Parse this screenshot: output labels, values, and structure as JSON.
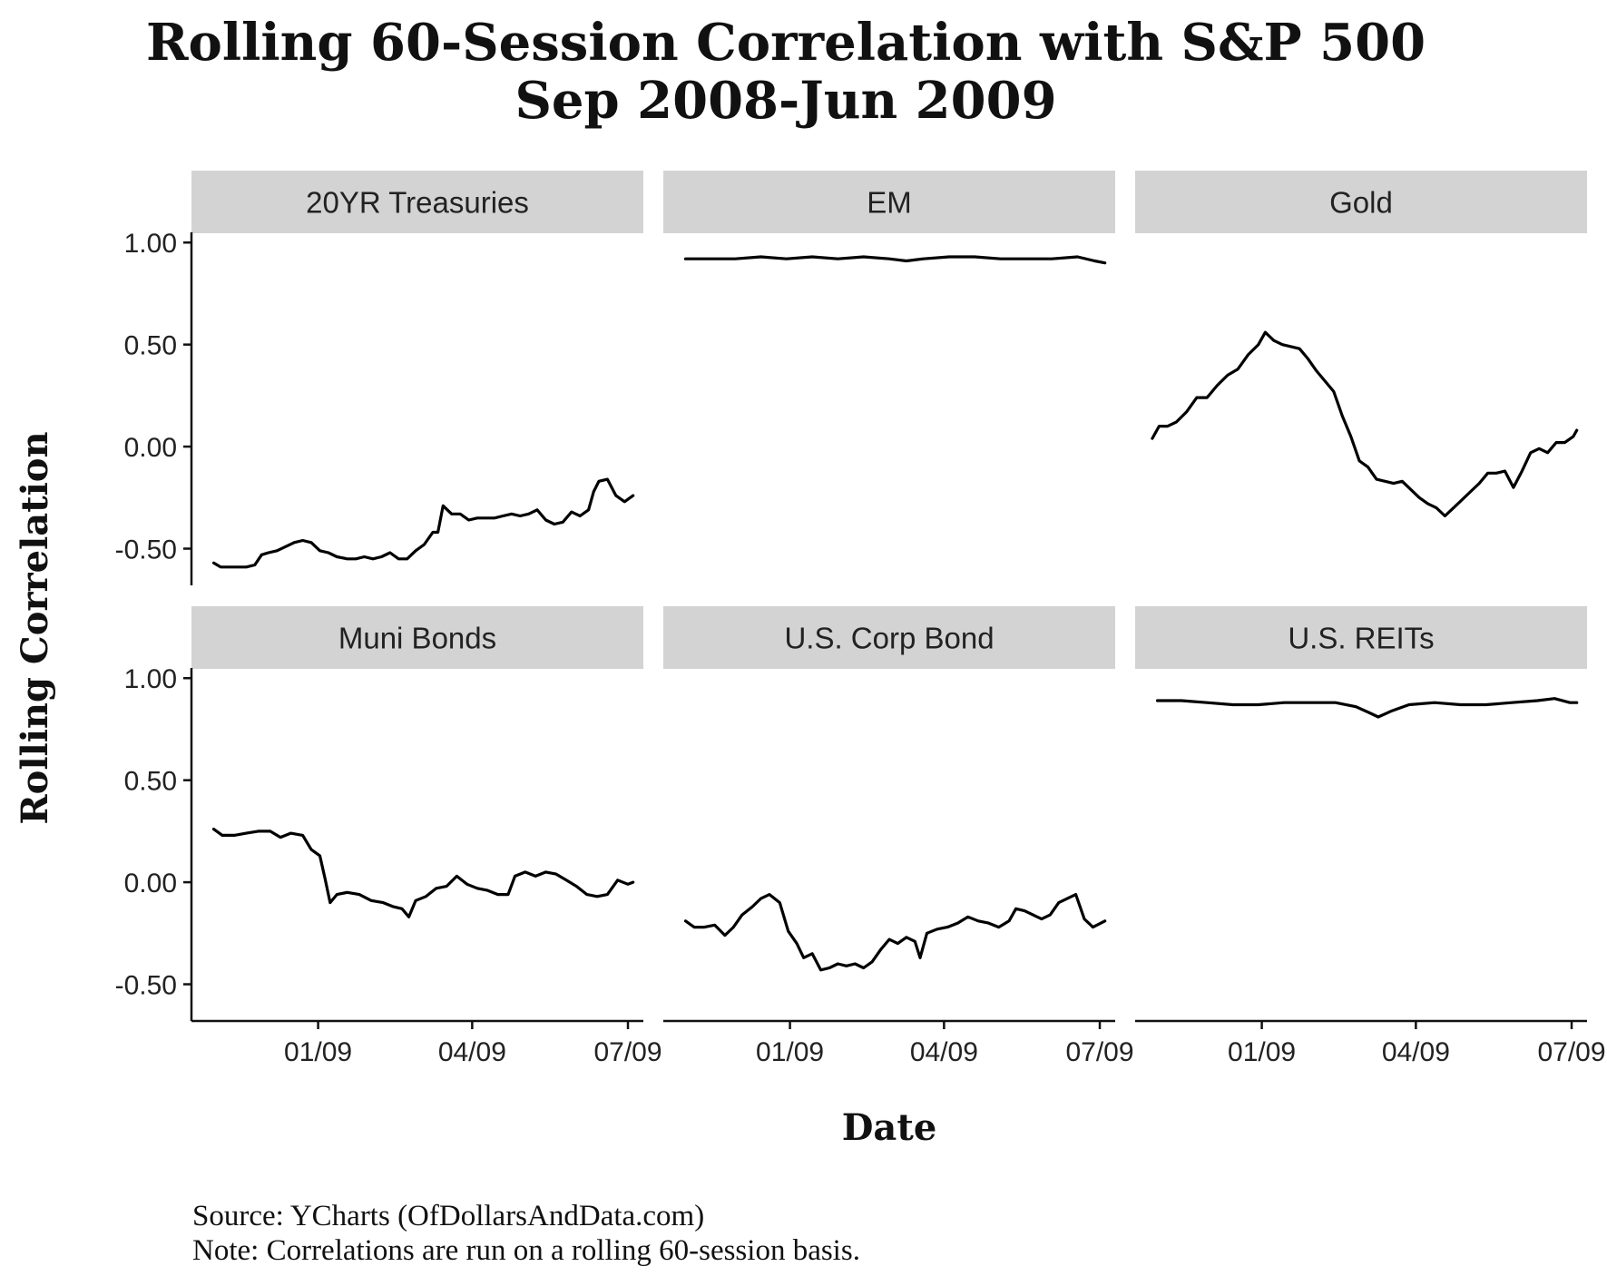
{
  "title_line1": "Rolling 60-Session Correlation with S&P 500",
  "title_line2": "Sep 2008-Jun 2009",
  "caption_source": "Source:  YCharts (OfDollarsAndData.com)",
  "caption_note": "Note: Correlations are run on a rolling 60-session basis.",
  "chart_data": {
    "type": "line",
    "title": "Rolling 60-Session Correlation with S&P 500 Sep 2008-Jun 2009",
    "xlabel": "Date",
    "ylabel": "Rolling Correlation",
    "x_range": [
      "2008-10-19",
      "2009-07-10"
    ],
    "ylim": [
      -0.68,
      1.05
    ],
    "y_ticks": [
      1.0,
      0.5,
      0.0,
      -0.5
    ],
    "y_tick_labels": [
      "1.00",
      "0.50",
      "0.00",
      "-0.50"
    ],
    "x_ticks": [
      "2009-01-01",
      "2009-04-01",
      "2009-07-01"
    ],
    "x_tick_labels": [
      "01/09",
      "04/09",
      "07/09"
    ],
    "grid": false,
    "layout": "facets 2 rows x 3 columns",
    "series": [
      {
        "name": "20YR Treasuries",
        "points": [
          [
            "2008-11-01",
            -0.57
          ],
          [
            "2008-11-05",
            -0.59
          ],
          [
            "2008-11-10",
            -0.59
          ],
          [
            "2008-11-15",
            -0.59
          ],
          [
            "2008-11-20",
            -0.59
          ],
          [
            "2008-11-25",
            -0.58
          ],
          [
            "2008-11-29",
            -0.53
          ],
          [
            "2008-12-03",
            -0.52
          ],
          [
            "2008-12-08",
            -0.51
          ],
          [
            "2008-12-13",
            -0.49
          ],
          [
            "2008-12-18",
            -0.47
          ],
          [
            "2008-12-23",
            -0.46
          ],
          [
            "2008-12-28",
            -0.47
          ],
          [
            "2009-01-02",
            -0.51
          ],
          [
            "2009-01-07",
            -0.52
          ],
          [
            "2009-01-12",
            -0.54
          ],
          [
            "2009-01-18",
            -0.55
          ],
          [
            "2009-01-23",
            -0.55
          ],
          [
            "2009-01-28",
            -0.54
          ],
          [
            "2009-02-02",
            -0.55
          ],
          [
            "2009-02-07",
            -0.54
          ],
          [
            "2009-02-12",
            -0.52
          ],
          [
            "2009-02-17",
            -0.55
          ],
          [
            "2009-02-22",
            -0.55
          ],
          [
            "2009-02-27",
            -0.51
          ],
          [
            "2009-03-04",
            -0.48
          ],
          [
            "2009-03-09",
            -0.42
          ],
          [
            "2009-03-12",
            -0.42
          ],
          [
            "2009-03-15",
            -0.29
          ],
          [
            "2009-03-20",
            -0.33
          ],
          [
            "2009-03-25",
            -0.33
          ],
          [
            "2009-03-30",
            -0.36
          ],
          [
            "2009-04-04",
            -0.35
          ],
          [
            "2009-04-09",
            -0.35
          ],
          [
            "2009-04-14",
            -0.35
          ],
          [
            "2009-04-19",
            -0.34
          ],
          [
            "2009-04-24",
            -0.33
          ],
          [
            "2009-04-29",
            -0.34
          ],
          [
            "2009-05-04",
            -0.33
          ],
          [
            "2009-05-09",
            -0.31
          ],
          [
            "2009-05-14",
            -0.36
          ],
          [
            "2009-05-19",
            -0.38
          ],
          [
            "2009-05-24",
            -0.37
          ],
          [
            "2009-05-29",
            -0.32
          ],
          [
            "2009-06-03",
            -0.34
          ],
          [
            "2009-06-08",
            -0.31
          ],
          [
            "2009-06-11",
            -0.22
          ],
          [
            "2009-06-14",
            -0.17
          ],
          [
            "2009-06-19",
            -0.16
          ],
          [
            "2009-06-24",
            -0.24
          ],
          [
            "2009-06-29",
            -0.27
          ],
          [
            "2009-07-04",
            -0.24
          ]
        ]
      },
      {
        "name": "EM",
        "points": [
          [
            "2008-11-01",
            0.92
          ],
          [
            "2008-11-15",
            0.92
          ],
          [
            "2008-11-30",
            0.92
          ],
          [
            "2008-12-15",
            0.93
          ],
          [
            "2008-12-30",
            0.92
          ],
          [
            "2009-01-14",
            0.93
          ],
          [
            "2009-01-29",
            0.92
          ],
          [
            "2009-02-13",
            0.93
          ],
          [
            "2009-02-28",
            0.92
          ],
          [
            "2009-03-10",
            0.91
          ],
          [
            "2009-03-20",
            0.92
          ],
          [
            "2009-04-04",
            0.93
          ],
          [
            "2009-04-19",
            0.93
          ],
          [
            "2009-05-04",
            0.92
          ],
          [
            "2009-05-19",
            0.92
          ],
          [
            "2009-06-03",
            0.92
          ],
          [
            "2009-06-18",
            0.93
          ],
          [
            "2009-06-28",
            0.91
          ],
          [
            "2009-07-04",
            0.9
          ]
        ]
      },
      {
        "name": "Gold",
        "points": [
          [
            "2008-10-29",
            0.04
          ],
          [
            "2008-11-02",
            0.1
          ],
          [
            "2008-11-07",
            0.1
          ],
          [
            "2008-11-12",
            0.12
          ],
          [
            "2008-11-18",
            0.17
          ],
          [
            "2008-11-24",
            0.24
          ],
          [
            "2008-11-30",
            0.24
          ],
          [
            "2008-12-06",
            0.3
          ],
          [
            "2008-12-12",
            0.35
          ],
          [
            "2008-12-18",
            0.38
          ],
          [
            "2008-12-24",
            0.45
          ],
          [
            "2008-12-30",
            0.5
          ],
          [
            "2009-01-03",
            0.56
          ],
          [
            "2009-01-08",
            0.52
          ],
          [
            "2009-01-13",
            0.5
          ],
          [
            "2009-01-18",
            0.49
          ],
          [
            "2009-01-23",
            0.48
          ],
          [
            "2009-01-28",
            0.43
          ],
          [
            "2009-02-02",
            0.37
          ],
          [
            "2009-02-07",
            0.32
          ],
          [
            "2009-02-12",
            0.27
          ],
          [
            "2009-02-17",
            0.15
          ],
          [
            "2009-02-22",
            0.05
          ],
          [
            "2009-02-27",
            -0.07
          ],
          [
            "2009-03-04",
            -0.1
          ],
          [
            "2009-03-09",
            -0.16
          ],
          [
            "2009-03-14",
            -0.17
          ],
          [
            "2009-03-19",
            -0.18
          ],
          [
            "2009-03-24",
            -0.17
          ],
          [
            "2009-03-29",
            -0.21
          ],
          [
            "2009-04-03",
            -0.25
          ],
          [
            "2009-04-08",
            -0.28
          ],
          [
            "2009-04-13",
            -0.3
          ],
          [
            "2009-04-18",
            -0.34
          ],
          [
            "2009-04-23",
            -0.3
          ],
          [
            "2009-04-28",
            -0.26
          ],
          [
            "2009-05-03",
            -0.22
          ],
          [
            "2009-05-08",
            -0.18
          ],
          [
            "2009-05-13",
            -0.13
          ],
          [
            "2009-05-18",
            -0.13
          ],
          [
            "2009-05-23",
            -0.12
          ],
          [
            "2009-05-28",
            -0.2
          ],
          [
            "2009-06-02",
            -0.12
          ],
          [
            "2009-06-07",
            -0.03
          ],
          [
            "2009-06-12",
            -0.01
          ],
          [
            "2009-06-17",
            -0.03
          ],
          [
            "2009-06-22",
            0.02
          ],
          [
            "2009-06-27",
            0.02
          ],
          [
            "2009-07-02",
            0.05
          ],
          [
            "2009-07-04",
            0.08
          ]
        ]
      },
      {
        "name": "Muni Bonds",
        "points": [
          [
            "2008-11-01",
            0.26
          ],
          [
            "2008-11-06",
            0.23
          ],
          [
            "2008-11-13",
            0.23
          ],
          [
            "2008-11-20",
            0.24
          ],
          [
            "2008-11-27",
            0.25
          ],
          [
            "2008-12-04",
            0.25
          ],
          [
            "2008-12-10",
            0.22
          ],
          [
            "2008-12-16",
            0.24
          ],
          [
            "2008-12-23",
            0.23
          ],
          [
            "2008-12-28",
            0.16
          ],
          [
            "2009-01-02",
            0.13
          ],
          [
            "2009-01-05",
            0.02
          ],
          [
            "2009-01-08",
            -0.1
          ],
          [
            "2009-01-12",
            -0.06
          ],
          [
            "2009-01-18",
            -0.05
          ],
          [
            "2009-01-25",
            -0.06
          ],
          [
            "2009-02-01",
            -0.09
          ],
          [
            "2009-02-08",
            -0.1
          ],
          [
            "2009-02-14",
            -0.12
          ],
          [
            "2009-02-19",
            -0.13
          ],
          [
            "2009-02-23",
            -0.17
          ],
          [
            "2009-02-27",
            -0.09
          ],
          [
            "2009-03-05",
            -0.07
          ],
          [
            "2009-03-11",
            -0.03
          ],
          [
            "2009-03-17",
            -0.02
          ],
          [
            "2009-03-23",
            0.03
          ],
          [
            "2009-03-29",
            -0.01
          ],
          [
            "2009-04-04",
            -0.03
          ],
          [
            "2009-04-10",
            -0.04
          ],
          [
            "2009-04-16",
            -0.06
          ],
          [
            "2009-04-22",
            -0.06
          ],
          [
            "2009-04-26",
            0.03
          ],
          [
            "2009-05-02",
            0.05
          ],
          [
            "2009-05-08",
            0.03
          ],
          [
            "2009-05-14",
            0.05
          ],
          [
            "2009-05-20",
            0.04
          ],
          [
            "2009-05-26",
            0.01
          ],
          [
            "2009-06-01",
            -0.02
          ],
          [
            "2009-06-07",
            -0.06
          ],
          [
            "2009-06-13",
            -0.07
          ],
          [
            "2009-06-19",
            -0.06
          ],
          [
            "2009-06-25",
            0.01
          ],
          [
            "2009-07-01",
            -0.01
          ],
          [
            "2009-07-04",
            0.0
          ]
        ]
      },
      {
        "name": "U.S. Corp Bond",
        "points": [
          [
            "2008-11-01",
            -0.19
          ],
          [
            "2008-11-06",
            -0.22
          ],
          [
            "2008-11-12",
            -0.22
          ],
          [
            "2008-11-18",
            -0.21
          ],
          [
            "2008-11-24",
            -0.26
          ],
          [
            "2008-11-29",
            -0.22
          ],
          [
            "2008-12-04",
            -0.16
          ],
          [
            "2008-12-10",
            -0.12
          ],
          [
            "2008-12-15",
            -0.08
          ],
          [
            "2008-12-20",
            -0.06
          ],
          [
            "2008-12-26",
            -0.1
          ],
          [
            "2008-12-31",
            -0.24
          ],
          [
            "2009-01-05",
            -0.3
          ],
          [
            "2009-01-09",
            -0.37
          ],
          [
            "2009-01-14",
            -0.35
          ],
          [
            "2009-01-19",
            -0.43
          ],
          [
            "2009-01-24",
            -0.42
          ],
          [
            "2009-01-29",
            -0.4
          ],
          [
            "2009-02-03",
            -0.41
          ],
          [
            "2009-02-08",
            -0.4
          ],
          [
            "2009-02-13",
            -0.42
          ],
          [
            "2009-02-18",
            -0.39
          ],
          [
            "2009-02-23",
            -0.33
          ],
          [
            "2009-02-28",
            -0.28
          ],
          [
            "2009-03-05",
            -0.3
          ],
          [
            "2009-03-10",
            -0.27
          ],
          [
            "2009-03-15",
            -0.29
          ],
          [
            "2009-03-18",
            -0.37
          ],
          [
            "2009-03-22",
            -0.25
          ],
          [
            "2009-03-28",
            -0.23
          ],
          [
            "2009-04-03",
            -0.22
          ],
          [
            "2009-04-09",
            -0.2
          ],
          [
            "2009-04-15",
            -0.17
          ],
          [
            "2009-04-21",
            -0.19
          ],
          [
            "2009-04-27",
            -0.2
          ],
          [
            "2009-05-03",
            -0.22
          ],
          [
            "2009-05-09",
            -0.19
          ],
          [
            "2009-05-13",
            -0.13
          ],
          [
            "2009-05-18",
            -0.14
          ],
          [
            "2009-05-23",
            -0.16
          ],
          [
            "2009-05-28",
            -0.18
          ],
          [
            "2009-06-02",
            -0.16
          ],
          [
            "2009-06-07",
            -0.1
          ],
          [
            "2009-06-12",
            -0.08
          ],
          [
            "2009-06-17",
            -0.06
          ],
          [
            "2009-06-22",
            -0.18
          ],
          [
            "2009-06-27",
            -0.22
          ],
          [
            "2009-07-04",
            -0.19
          ]
        ]
      },
      {
        "name": "U.S. REITs",
        "points": [
          [
            "2008-11-01",
            0.89
          ],
          [
            "2008-11-15",
            0.89
          ],
          [
            "2008-11-30",
            0.88
          ],
          [
            "2008-12-15",
            0.87
          ],
          [
            "2008-12-30",
            0.87
          ],
          [
            "2009-01-14",
            0.88
          ],
          [
            "2009-01-29",
            0.88
          ],
          [
            "2009-02-13",
            0.88
          ],
          [
            "2009-02-25",
            0.86
          ],
          [
            "2009-03-05",
            0.83
          ],
          [
            "2009-03-10",
            0.81
          ],
          [
            "2009-03-18",
            0.84
          ],
          [
            "2009-03-28",
            0.87
          ],
          [
            "2009-04-12",
            0.88
          ],
          [
            "2009-04-27",
            0.87
          ],
          [
            "2009-05-12",
            0.87
          ],
          [
            "2009-05-27",
            0.88
          ],
          [
            "2009-06-11",
            0.89
          ],
          [
            "2009-06-21",
            0.9
          ],
          [
            "2009-06-30",
            0.88
          ],
          [
            "2009-07-04",
            0.88
          ]
        ]
      }
    ]
  }
}
